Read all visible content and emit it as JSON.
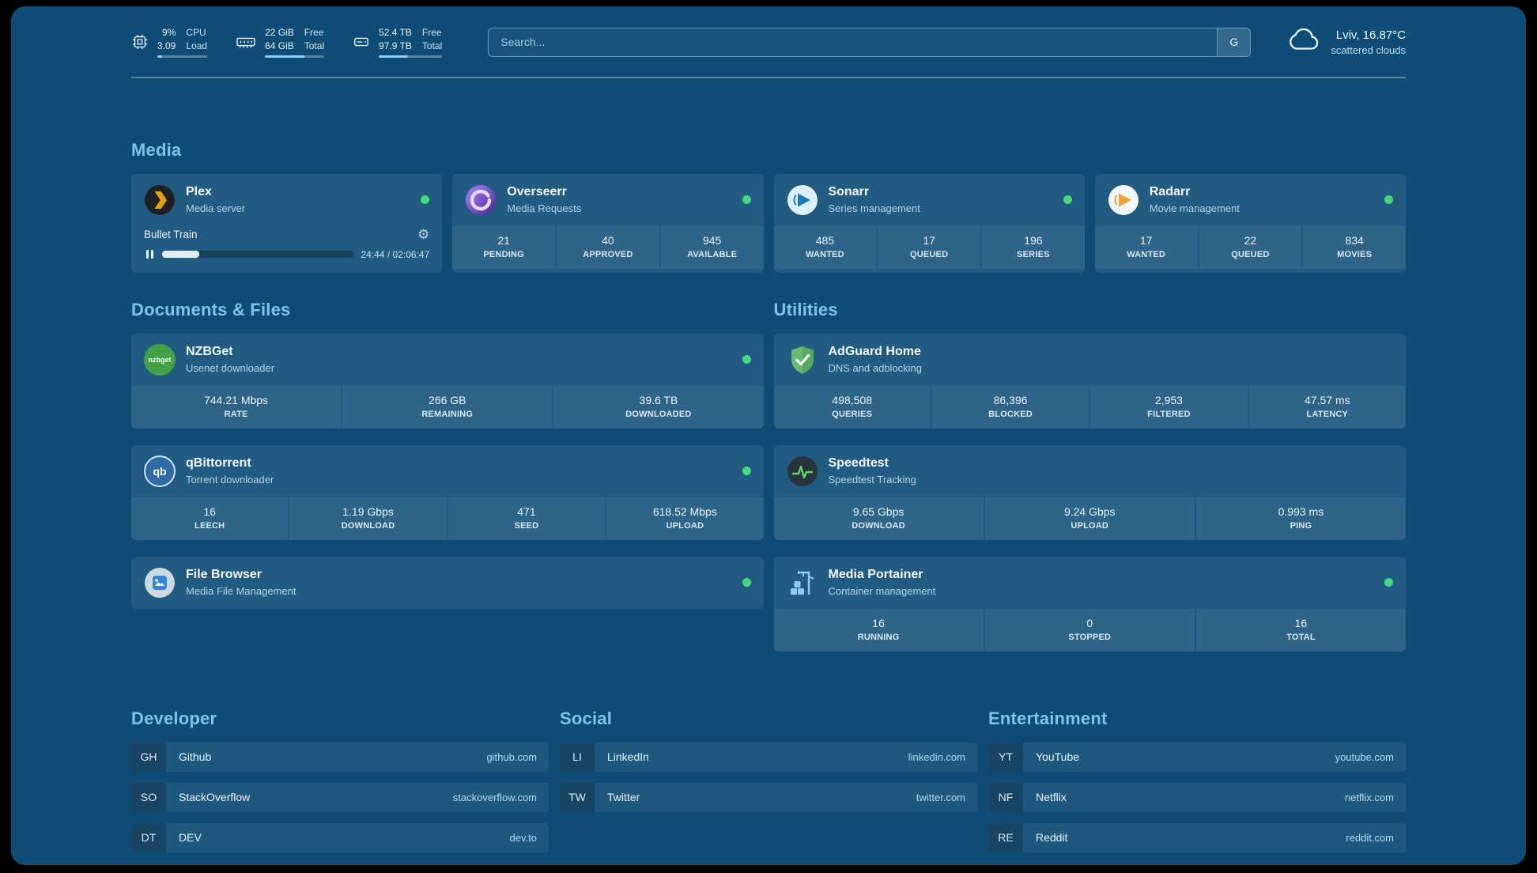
{
  "colors": {
    "bg": "#0e4c76",
    "accent": "#7fc3ea",
    "status": "#43d97c",
    "fill": "#8fd0f8"
  },
  "topbar": {
    "cpu": {
      "value1": "9%",
      "value2": "3.09",
      "label1": "CPU",
      "label2": "Load",
      "bar_percent": 9
    },
    "ram": {
      "value1": "22 GiB",
      "value2": "64 GiB",
      "label1": "Free",
      "label2": "Total",
      "bar_percent": 66
    },
    "disk": {
      "value1": "52.4 TB",
      "value2": "97.9 TB",
      "label1": "Free",
      "label2": "Total",
      "bar_percent": 46
    },
    "search": {
      "placeholder": "Search...",
      "button_label": "G"
    },
    "weather": {
      "location": "Lviv, 16.87°C",
      "condition": "scattered clouds"
    }
  },
  "icons": {
    "nzbget_text": "nzbget",
    "qbittorrent_text": "qb",
    "settings_gear": "⚙"
  },
  "media": {
    "heading": "Media",
    "plex": {
      "title": "Plex",
      "subtitle": "Media server",
      "now_playing": "Bullet Train",
      "time": "24:44 / 02:06:47",
      "progress_percent": 19.5
    },
    "overseerr": {
      "title": "Overseerr",
      "subtitle": "Media Requests",
      "stats": [
        {
          "value": "21",
          "label": "PENDING"
        },
        {
          "value": "40",
          "label": "APPROVED"
        },
        {
          "value": "945",
          "label": "AVAILABLE"
        }
      ]
    },
    "sonarr": {
      "title": "Sonarr",
      "subtitle": "Series management",
      "stats": [
        {
          "value": "485",
          "label": "WANTED"
        },
        {
          "value": "17",
          "label": "QUEUED"
        },
        {
          "value": "196",
          "label": "SERIES"
        }
      ]
    },
    "radarr": {
      "title": "Radarr",
      "subtitle": "Movie management",
      "stats": [
        {
          "value": "17",
          "label": "WANTED"
        },
        {
          "value": "22",
          "label": "QUEUED"
        },
        {
          "value": "834",
          "label": "MOVIES"
        }
      ]
    }
  },
  "documents": {
    "heading": "Documents & Files",
    "nzbget": {
      "title": "NZBGet",
      "subtitle": "Usenet downloader",
      "stats": [
        {
          "value": "744.21 Mbps",
          "label": "RATE"
        },
        {
          "value": "266 GB",
          "label": "REMAINING"
        },
        {
          "value": "39.6 TB",
          "label": "DOWNLOADED"
        }
      ]
    },
    "qbittorrent": {
      "title": "qBittorrent",
      "subtitle": "Torrent downloader",
      "stats": [
        {
          "value": "16",
          "label": "LEECH"
        },
        {
          "value": "1.19 Gbps",
          "label": "DOWNLOAD"
        },
        {
          "value": "471",
          "label": "SEED"
        },
        {
          "value": "618.52 Mbps",
          "label": "UPLOAD"
        }
      ]
    },
    "filebrowser": {
      "title": "File Browser",
      "subtitle": "Media File Management"
    }
  },
  "utilities": {
    "heading": "Utilities",
    "adguard": {
      "title": "AdGuard Home",
      "subtitle": "DNS and adblocking",
      "stats": [
        {
          "value": "498,508",
          "label": "QUERIES"
        },
        {
          "value": "86,396",
          "label": "BLOCKED"
        },
        {
          "value": "2,953",
          "label": "FILTERED"
        },
        {
          "value": "47.57 ms",
          "label": "LATENCY"
        }
      ]
    },
    "speedtest": {
      "title": "Speedtest",
      "subtitle": "Speedtest Tracking",
      "stats": [
        {
          "value": "9.65 Gbps",
          "label": "DOWNLOAD"
        },
        {
          "value": "9.24 Gbps",
          "label": "UPLOAD"
        },
        {
          "value": "0.993 ms",
          "label": "PING"
        }
      ]
    },
    "portainer": {
      "title": "Media Portainer",
      "subtitle": "Container management",
      "stats": [
        {
          "value": "16",
          "label": "RUNNING"
        },
        {
          "value": "0",
          "label": "STOPPED"
        },
        {
          "value": "16",
          "label": "TOTAL"
        }
      ]
    }
  },
  "bookmarks": {
    "developer": {
      "heading": "Developer",
      "items": [
        {
          "abbr": "GH",
          "name": "Github",
          "domain": "github.com"
        },
        {
          "abbr": "SO",
          "name": "StackOverflow",
          "domain": "stackoverflow.com"
        },
        {
          "abbr": "DT",
          "name": "DEV",
          "domain": "dev.to"
        }
      ]
    },
    "social": {
      "heading": "Social",
      "items": [
        {
          "abbr": "LI",
          "name": "LinkedIn",
          "domain": "linkedin.com"
        },
        {
          "abbr": "TW",
          "name": "Twitter",
          "domain": "twitter.com"
        }
      ]
    },
    "entertainment": {
      "heading": "Entertainment",
      "items": [
        {
          "abbr": "YT",
          "name": "YouTube",
          "domain": "youtube.com"
        },
        {
          "abbr": "NF",
          "name": "Netflix",
          "domain": "netflix.com"
        },
        {
          "abbr": "RE",
          "name": "Reddit",
          "domain": "reddit.com"
        }
      ]
    }
  }
}
